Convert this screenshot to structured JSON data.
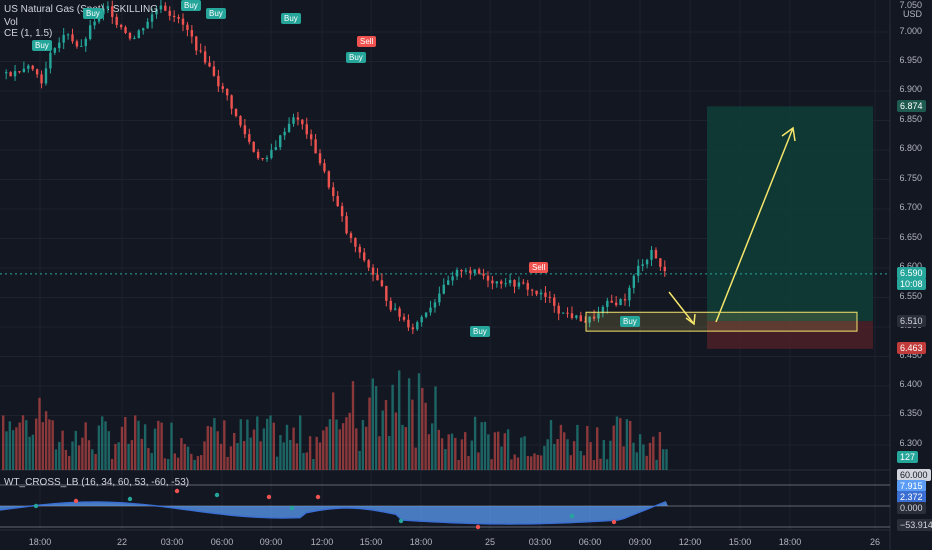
{
  "header": {
    "symbol_line": "US Natural Gas (Spot) · SKILLING",
    "volume_label": "Vol",
    "indicator_line": "CE (1, 1.5)",
    "currency": "USD"
  },
  "price_axis": {
    "ticks": [
      "7.000",
      "6.950",
      "6.900",
      "6.850",
      "6.800",
      "6.750",
      "6.700",
      "6.650",
      "6.600",
      "6.550",
      "6.500",
      "6.450",
      "6.400",
      "6.350",
      "6.300"
    ],
    "top_tick": "7.050"
  },
  "price_tags": {
    "target": "6.874",
    "current": "6.590",
    "countdown": "10:08",
    "entry": "6.510",
    "stop": "6.463",
    "volume": "127"
  },
  "oscillator": {
    "label": "WT_CROSS_LB (16, 34, 60, 53, -60, -53)",
    "tags": [
      "60.000",
      "7.915",
      "2.372",
      "0.000",
      "−53.914"
    ]
  },
  "time_axis": [
    "18:00",
    "22",
    "03:00",
    "06:00",
    "09:00",
    "12:00",
    "15:00",
    "18:00",
    "25",
    "03:00",
    "06:00",
    "09:00",
    "12:00",
    "15:00",
    "18:00",
    "26"
  ],
  "signals": {
    "buy": "Buy",
    "sell": "Sell"
  },
  "colors": {
    "background": "#131722",
    "up": "#26a69a",
    "down": "#ef5350",
    "target_zone": "#0f3b35",
    "stop_zone": "#4a1f28",
    "arrow": "#f5e56b",
    "wave": "#5b9cf6"
  },
  "chart_data": {
    "type": "candlestick",
    "ylim": [
      6.27,
      7.05
    ],
    "candles_close": [
      6.93,
      6.95,
      6.92,
      6.98,
      7.0,
      6.97,
      7.02,
      7.04,
      7.01,
      6.99,
      7.02,
      7.05,
      7.03,
      7.0,
      6.96,
      6.93,
      6.89,
      6.84,
      6.8,
      6.78,
      6.82,
      6.86,
      6.83,
      6.78,
      6.72,
      6.66,
      6.62,
      6.59,
      6.55,
      6.52,
      6.5,
      6.53,
      6.56,
      6.58,
      6.6,
      6.59,
      6.58,
      6.58,
      6.57,
      6.56,
      6.55,
      6.53,
      6.52,
      6.51,
      6.52,
      6.54,
      6.55,
      6.6,
      6.63,
      6.59
    ],
    "position": {
      "target": 6.874,
      "entry": 6.51,
      "stop": 6.463
    }
  }
}
